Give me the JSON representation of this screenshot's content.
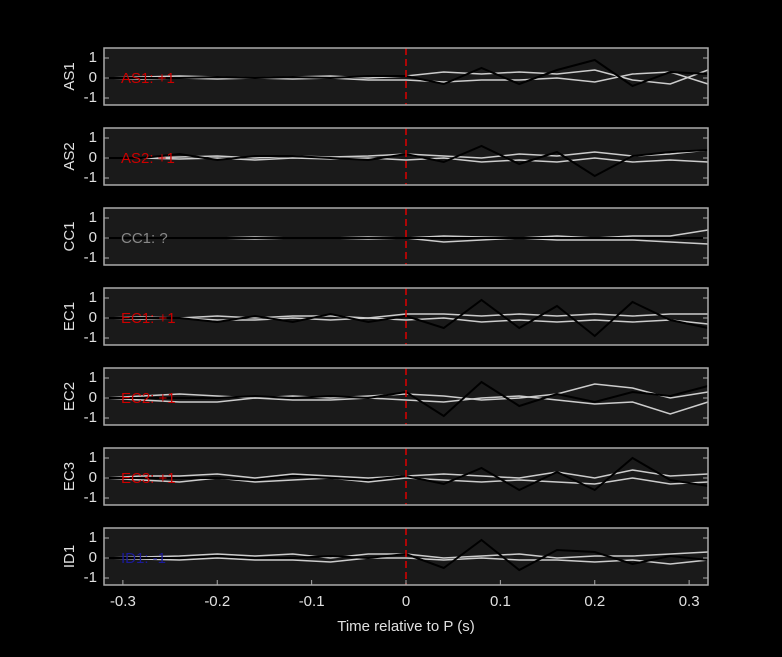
{
  "chart_data": [
    {
      "type": "line",
      "ylabel": "AS1",
      "annotation": "AS1: +1",
      "annotation_color": "#cc0000",
      "marker_x": 0,
      "marker_color": "#dd0000",
      "x": [
        -0.32,
        -0.28,
        -0.24,
        -0.2,
        -0.16,
        -0.12,
        -0.08,
        -0.04,
        0,
        0.04,
        0.08,
        0.12,
        0.16,
        0.2,
        0.24,
        0.28,
        0.32
      ],
      "series": [
        {
          "color": "#cccccc",
          "values": [
            0,
            0.05,
            0.1,
            0.05,
            0,
            0.05,
            0.1,
            0,
            0.1,
            0.3,
            0.2,
            0.3,
            0.2,
            0.4,
            -0.1,
            -0.3,
            0.4
          ]
        },
        {
          "color": "#cccccc",
          "values": [
            0,
            -0.05,
            0,
            -0.05,
            0,
            -0.05,
            0,
            -0.1,
            -0.1,
            -0.2,
            -0.1,
            -0.1,
            0,
            -0.2,
            0.2,
            0.3,
            -0.3
          ]
        },
        {
          "color": "#000000",
          "values": [
            0,
            0,
            0,
            0.05,
            0,
            0.05,
            0,
            0.1,
            0.1,
            -0.3,
            0.5,
            -0.3,
            0.4,
            0.9,
            -0.4,
            0.3,
            0.2
          ]
        }
      ],
      "xlim": [
        -0.32,
        0.32
      ],
      "ylim": [
        -1.35,
        1.5
      ],
      "yticks": [
        -1,
        0,
        1
      ]
    },
    {
      "type": "line",
      "ylabel": "AS2",
      "annotation": "AS2: +1",
      "annotation_color": "#cc0000",
      "marker_x": 0,
      "marker_color": "#dd0000",
      "x": [
        -0.32,
        -0.28,
        -0.24,
        -0.2,
        -0.16,
        -0.12,
        -0.08,
        -0.04,
        0,
        0.04,
        0.08,
        0.12,
        0.16,
        0.2,
        0.24,
        0.28,
        0.32
      ],
      "series": [
        {
          "color": "#cccccc",
          "values": [
            0,
            0,
            0.05,
            0.1,
            0,
            0.1,
            0.05,
            0.1,
            0.2,
            0.1,
            0,
            0.2,
            0.1,
            0.3,
            0.1,
            0.2,
            0.4
          ]
        },
        {
          "color": "#cccccc",
          "values": [
            0,
            0,
            -0.05,
            0,
            -0.1,
            0,
            -0.05,
            0,
            -0.1,
            0,
            -0.2,
            -0.1,
            -0.2,
            0,
            -0.2,
            -0.1,
            -0.2
          ]
        },
        {
          "color": "#000000",
          "values": [
            0,
            0,
            0.2,
            -0.1,
            0.1,
            0.1,
            0,
            -0.1,
            0.2,
            -0.2,
            0.6,
            -0.3,
            0.3,
            -0.9,
            0.1,
            0.3,
            0.4
          ]
        }
      ],
      "xlim": [
        -0.32,
        0.32
      ],
      "ylim": [
        -1.35,
        1.5
      ],
      "yticks": [
        -1,
        0,
        1
      ]
    },
    {
      "type": "line",
      "ylabel": "CC1",
      "annotation": "CC1: ?",
      "annotation_color": "#888888",
      "marker_x": 0,
      "marker_color": "#dd0000",
      "x": [
        -0.32,
        -0.28,
        -0.24,
        -0.2,
        -0.16,
        -0.12,
        -0.08,
        -0.04,
        0,
        0.04,
        0.08,
        0.12,
        0.16,
        0.2,
        0.24,
        0.28,
        0.32
      ],
      "series": [
        {
          "color": "#cccccc",
          "values": [
            0,
            0,
            0,
            0,
            0.05,
            0,
            0,
            0.05,
            0,
            0.1,
            0.05,
            0,
            0.1,
            0,
            0.1,
            0.1,
            0.4
          ]
        },
        {
          "color": "#cccccc",
          "values": [
            0,
            0,
            0,
            0,
            -0.05,
            0,
            0,
            -0.05,
            0,
            -0.2,
            -0.1,
            0,
            -0.1,
            -0.1,
            -0.1,
            -0.2,
            -0.3
          ]
        },
        {
          "color": "#000000",
          "values": [
            0,
            0,
            0,
            0,
            0,
            0,
            0,
            0,
            0,
            0,
            0,
            0,
            0,
            0,
            0,
            0,
            0
          ]
        }
      ],
      "xlim": [
        -0.32,
        0.32
      ],
      "ylim": [
        -1.35,
        1.5
      ],
      "yticks": [
        -1,
        0,
        1
      ]
    },
    {
      "type": "line",
      "ylabel": "EC1",
      "annotation": "EC1: +1",
      "annotation_color": "#cc0000",
      "marker_x": 0,
      "marker_color": "#dd0000",
      "x": [
        -0.32,
        -0.28,
        -0.24,
        -0.2,
        -0.16,
        -0.12,
        -0.08,
        -0.04,
        0,
        0.04,
        0.08,
        0.12,
        0.16,
        0.2,
        0.24,
        0.28,
        0.32
      ],
      "series": [
        {
          "color": "#cccccc",
          "values": [
            0,
            0.05,
            0,
            0.1,
            0,
            0.1,
            0.1,
            0,
            0.2,
            0.2,
            0.1,
            0.2,
            0.1,
            0.2,
            0.1,
            0.2,
            0.2
          ]
        },
        {
          "color": "#cccccc",
          "values": [
            0,
            -0.05,
            0,
            -0.1,
            -0.1,
            0,
            -0.1,
            0,
            -0.1,
            0,
            -0.2,
            -0.1,
            -0.2,
            -0.1,
            -0.2,
            -0.1,
            -0.3
          ]
        },
        {
          "color": "#000000",
          "values": [
            0,
            0,
            0,
            -0.2,
            0.1,
            -0.2,
            0.2,
            -0.2,
            0.1,
            -0.5,
            0.9,
            -0.5,
            0.6,
            -0.9,
            0.8,
            -0.1,
            -0.5
          ]
        }
      ],
      "xlim": [
        -0.32,
        0.32
      ],
      "ylim": [
        -1.35,
        1.5
      ],
      "yticks": [
        -1,
        0,
        1
      ]
    },
    {
      "type": "line",
      "ylabel": "EC2",
      "annotation": "EC2: +1",
      "annotation_color": "#cc0000",
      "marker_x": 0,
      "marker_color": "#dd0000",
      "x": [
        -0.32,
        -0.28,
        -0.24,
        -0.2,
        -0.16,
        -0.12,
        -0.08,
        -0.04,
        0,
        0.04,
        0.08,
        0.12,
        0.16,
        0.2,
        0.24,
        0.28,
        0.32
      ],
      "series": [
        {
          "color": "#cccccc",
          "values": [
            0,
            0.1,
            0.2,
            0.1,
            0,
            0.1,
            0,
            0.1,
            0.2,
            0.1,
            -0.1,
            0,
            0.2,
            0.7,
            0.5,
            0,
            0.3
          ]
        },
        {
          "color": "#cccccc",
          "values": [
            0,
            -0.1,
            -0.2,
            -0.2,
            0,
            -0.1,
            -0.1,
            0,
            -0.1,
            -0.2,
            0,
            0.1,
            -0.1,
            -0.3,
            -0.2,
            -0.8,
            -0.2
          ]
        },
        {
          "color": "#000000",
          "values": [
            0,
            0,
            0,
            0,
            0.1,
            0,
            0.1,
            0,
            0.3,
            -0.9,
            0.8,
            -0.4,
            0.2,
            -0.2,
            0.3,
            0.1,
            0.6
          ]
        }
      ],
      "xlim": [
        -0.32,
        0.32
      ],
      "ylim": [
        -1.35,
        1.5
      ],
      "yticks": [
        -1,
        0,
        1
      ]
    },
    {
      "type": "line",
      "ylabel": "EC3",
      "annotation": "EC3: +1",
      "annotation_color": "#cc0000",
      "marker_x": 0,
      "marker_color": "#dd0000",
      "x": [
        -0.32,
        -0.28,
        -0.24,
        -0.2,
        -0.16,
        -0.12,
        -0.08,
        -0.04,
        0,
        0.04,
        0.08,
        0.12,
        0.16,
        0.2,
        0.24,
        0.28,
        0.32
      ],
      "series": [
        {
          "color": "#cccccc",
          "values": [
            0,
            0.1,
            0.1,
            0.2,
            0,
            0.2,
            0.1,
            0,
            0.1,
            0.2,
            0.1,
            0,
            0.3,
            0,
            0.4,
            0.1,
            0.2
          ]
        },
        {
          "color": "#cccccc",
          "values": [
            0,
            -0.1,
            -0.2,
            0,
            -0.2,
            -0.1,
            0,
            -0.2,
            0,
            -0.1,
            -0.2,
            -0.1,
            -0.2,
            -0.3,
            0,
            -0.3,
            -0.2
          ]
        },
        {
          "color": "#000000",
          "values": [
            0,
            0,
            0,
            0,
            -0.1,
            0.1,
            0,
            -0.1,
            0.1,
            -0.3,
            0.5,
            -0.6,
            0.3,
            -0.6,
            1.0,
            -0.1,
            -0.4
          ]
        }
      ],
      "xlim": [
        -0.32,
        0.32
      ],
      "ylim": [
        -1.35,
        1.5
      ],
      "yticks": [
        -1,
        0,
        1
      ]
    },
    {
      "type": "line",
      "ylabel": "ID1",
      "annotation": "ID1: -1",
      "annotation_color": "#1a1a99",
      "marker_x": 0,
      "marker_color": "#dd0000",
      "x": [
        -0.32,
        -0.28,
        -0.24,
        -0.2,
        -0.16,
        -0.12,
        -0.08,
        -0.04,
        0,
        0.04,
        0.08,
        0.12,
        0.16,
        0.2,
        0.24,
        0.28,
        0.32
      ],
      "series": [
        {
          "color": "#cccccc",
          "values": [
            0,
            0.05,
            0.1,
            0.2,
            0.1,
            0.2,
            0,
            0.2,
            0.2,
            0,
            0.1,
            0.2,
            0,
            0.1,
            0.1,
            0.2,
            0.3
          ]
        },
        {
          "color": "#cccccc",
          "values": [
            0,
            -0.05,
            -0.1,
            0,
            -0.1,
            -0.1,
            -0.2,
            0,
            0,
            -0.1,
            0,
            -0.1,
            -0.1,
            -0.2,
            -0.1,
            -0.3,
            -0.1
          ]
        },
        {
          "color": "#000000",
          "values": [
            0,
            0,
            0,
            0.1,
            0,
            0,
            0.1,
            0,
            0.2,
            -0.5,
            0.9,
            -0.6,
            0.4,
            0.3,
            -0.3,
            0.1,
            -0.1
          ]
        }
      ],
      "xlim": [
        -0.32,
        0.32
      ],
      "ylim": [
        -1.35,
        1.5
      ],
      "yticks": [
        -1,
        0,
        1
      ],
      "xticks": [
        -0.3,
        -0.2,
        -0.1,
        0,
        0.1,
        0.2,
        0.3
      ],
      "xlabel": "Time relative to P (s)"
    }
  ]
}
